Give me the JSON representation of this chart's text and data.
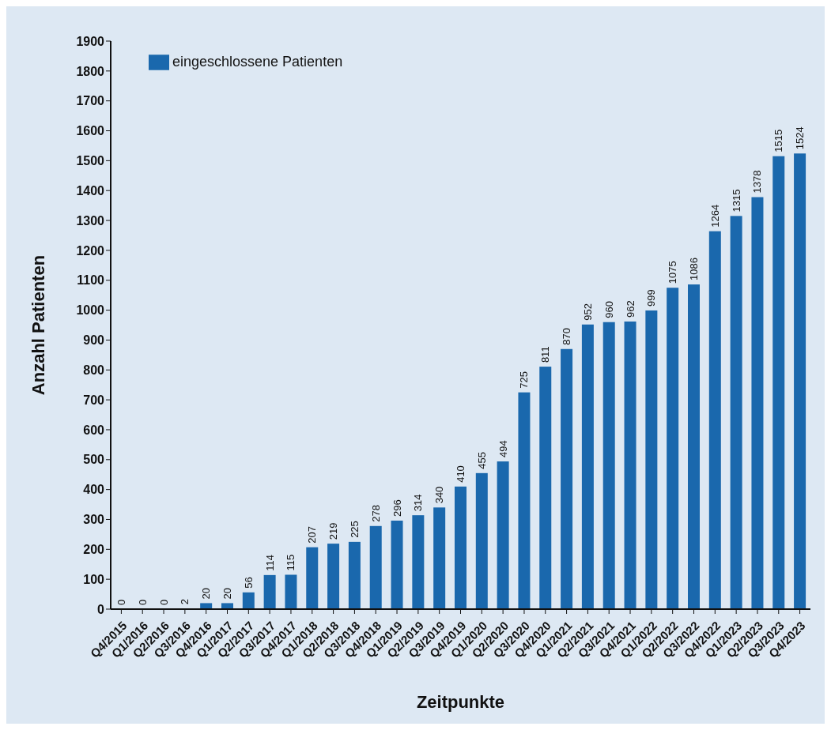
{
  "chart_data": {
    "type": "bar",
    "xlabel": "Zeitpunkte",
    "ylabel": "Anzahl Patienten",
    "categories": [
      "Q4/2015",
      "Q1/2016",
      "Q2/2016",
      "Q3/2016",
      "Q4/2016",
      "Q1/2017",
      "Q2/2017",
      "Q3/2017",
      "Q4/2017",
      "Q1/2018",
      "Q2/2018",
      "Q3/2018",
      "Q4/2018",
      "Q1/2019",
      "Q2/2019",
      "Q3/2019",
      "Q4/2019",
      "Q1/2020",
      "Q2/2020",
      "Q3/2020",
      "Q4/2020",
      "Q1/2021",
      "Q2/2021",
      "Q3/2021",
      "Q4/2021",
      "Q1/2022",
      "Q2/2022",
      "Q3/2022",
      "Q4/2022",
      "Q1/2023",
      "Q2/2023",
      "Q3/2023",
      "Q4/2023"
    ],
    "series": [
      {
        "name": "eingeschlossene Patienten",
        "color": "#1a68ad",
        "values": [
          0,
          0,
          0,
          2,
          20,
          20,
          56,
          114,
          115,
          207,
          219,
          225,
          278,
          296,
          314,
          340,
          410,
          455,
          494,
          725,
          811,
          870,
          952,
          960,
          962,
          999,
          1075,
          1086,
          1264,
          1315,
          1378,
          1515,
          1524
        ]
      }
    ],
    "ylim": [
      0,
      1900
    ],
    "yticks": [
      0,
      100,
      200,
      300,
      400,
      500,
      600,
      700,
      800,
      900,
      1000,
      1100,
      1200,
      1300,
      1400,
      1500,
      1600,
      1700,
      1800,
      1900
    ],
    "data_labels": true,
    "legend": "top left"
  }
}
